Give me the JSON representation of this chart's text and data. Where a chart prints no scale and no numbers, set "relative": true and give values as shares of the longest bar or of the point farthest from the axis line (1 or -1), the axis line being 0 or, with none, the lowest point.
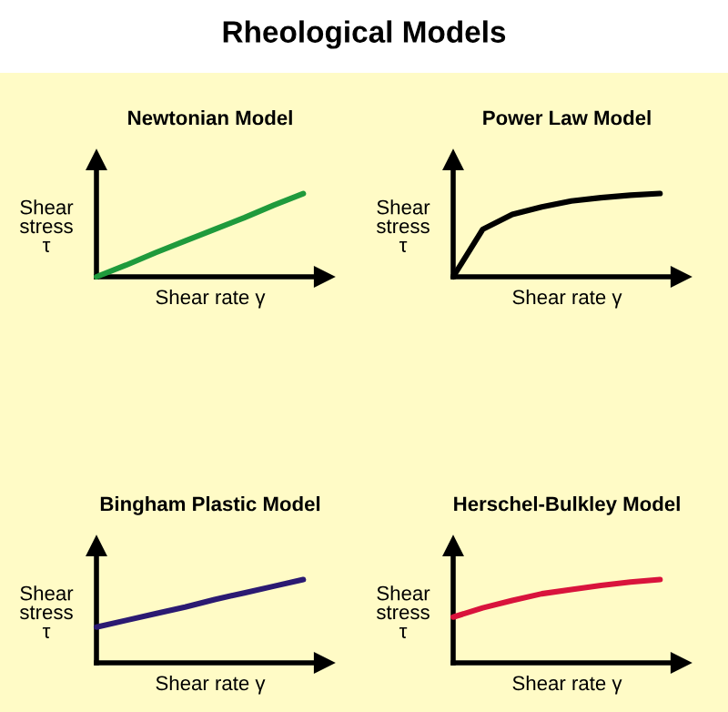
{
  "chart_data": [
    {
      "type": "line",
      "title": "Newtonian Model",
      "annotations": [
        "Rheological Models"
      ],
      "xlabel": "Shear rate γ",
      "ylabel": "Shear\nstress\nτ",
      "relative": true,
      "tick_labels": false,
      "categories": [
        null,
        null,
        null,
        null,
        null,
        null,
        null,
        null
      ],
      "series": [
        {
          "color": "#1f9a3c",
          "values": [
            0,
            0.14,
            0.29,
            0.43,
            0.57,
            0.71,
            0.86,
            1
          ]
        }
      ]
    },
    {
      "type": "line",
      "title": "Power Law Model",
      "xlabel": "Shear rate γ",
      "ylabel": "Shear\nstress\nτ",
      "relative": true,
      "tick_labels": false,
      "categories": [
        null,
        null,
        null,
        null,
        null,
        null,
        null,
        null
      ],
      "series": [
        {
          "color": "#000000",
          "values": [
            0,
            0.57,
            0.75,
            0.84,
            0.91,
            0.95,
            0.98,
            1
          ]
        }
      ]
    },
    {
      "type": "line",
      "title": "Bingham Plastic Model",
      "xlabel": "Shear rate γ",
      "ylabel": "Shear\nstress\nτ",
      "relative": true,
      "tick_labels": false,
      "categories": [
        null,
        null,
        null,
        null,
        null,
        null,
        null,
        null
      ],
      "series": [
        {
          "color": "#2b1a72",
          "values": [
            0.43,
            0.51,
            0.59,
            0.67,
            0.76,
            0.84,
            0.92,
            1
          ]
        }
      ]
    },
    {
      "type": "line",
      "title": "Herschel-Bulkley Model",
      "xlabel": "Shear rate γ",
      "ylabel": "Shear\nstress\nτ",
      "relative": true,
      "tick_labels": false,
      "categories": [
        null,
        null,
        null,
        null,
        null,
        null,
        null,
        null
      ],
      "series": [
        {
          "color": "#d9133c",
          "values": [
            0.55,
            0.66,
            0.75,
            0.83,
            0.88,
            0.93,
            0.97,
            1
          ]
        }
      ]
    }
  ]
}
